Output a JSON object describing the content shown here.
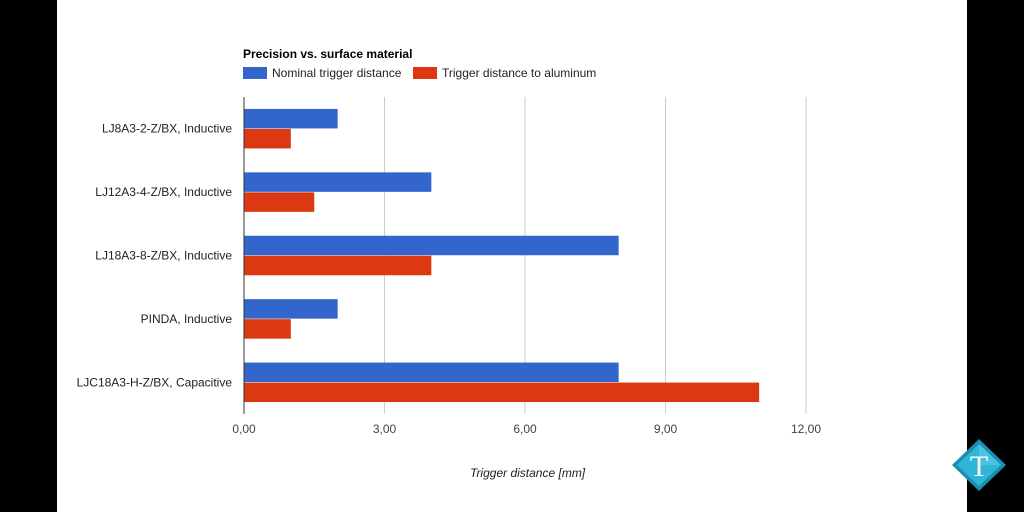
{
  "colors": {
    "series_nominal": "#3366cc",
    "series_aluminum": "#dc3912",
    "grid": "#cccccc",
    "axis": "#333333",
    "background": "#ffffff"
  },
  "chart_data": {
    "type": "bar",
    "orientation": "horizontal",
    "title": "Precision vs. surface material",
    "xlabel": "Trigger distance [mm]",
    "ylabel": "",
    "xlim": [
      0,
      12
    ],
    "grid": true,
    "legend_position": "top-left",
    "categories": [
      "LJ8A3-2-Z/BX, Inductive",
      "LJ12A3-4-Z/BX, Inductive",
      "LJ18A3-8-Z/BX, Inductive",
      "PINDA, Inductive",
      "LJC18A3-H-Z/BX, Capacitive"
    ],
    "series": [
      {
        "name": "Nominal trigger distance",
        "values": [
          2,
          4,
          8,
          2,
          8
        ]
      },
      {
        "name": "Trigger distance to aluminum",
        "values": [
          1,
          1.5,
          4,
          1,
          11
        ]
      }
    ],
    "x_ticks": [
      {
        "value": 0,
        "label": "0,00"
      },
      {
        "value": 3,
        "label": "3,00"
      },
      {
        "value": 6,
        "label": "6,00"
      },
      {
        "value": 9,
        "label": "9,00"
      },
      {
        "value": 12,
        "label": "12,00"
      }
    ]
  },
  "logo": {
    "letter": "T"
  }
}
